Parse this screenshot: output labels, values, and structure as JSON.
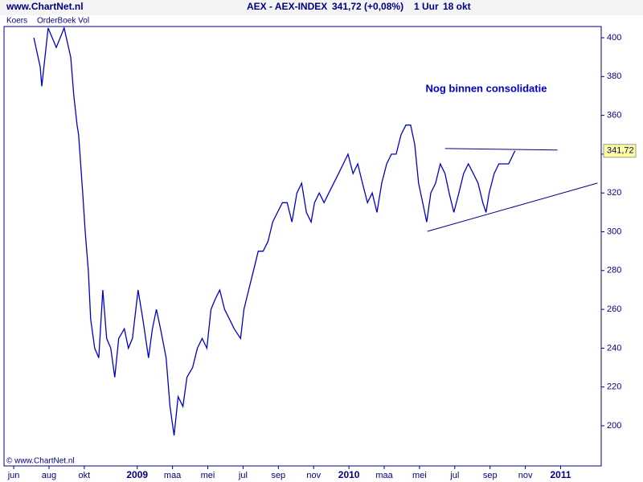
{
  "chart_data": {
    "type": "line",
    "site": "www.ChartNet.nl",
    "instrument": "AEX - AEX-INDEX",
    "quote": "341,72 (+0,08%)",
    "interval": "1 Uur",
    "date": "18 okt",
    "tabs": [
      "Koers",
      "OrderBoek Vol"
    ],
    "copyright": "© www.ChartNet.nl",
    "annotation": "Nog binnen consolidatie",
    "last_label": "341,72",
    "xlim": [
      -0.55,
      33.3
    ],
    "ylim": [
      179.3,
      405.8
    ],
    "xticks": [
      {
        "value": 0,
        "label": "jun"
      },
      {
        "value": 2,
        "label": "aug"
      },
      {
        "value": 4,
        "label": "okt"
      },
      {
        "value": 7,
        "label": "2009"
      },
      {
        "value": 9,
        "label": "maa"
      },
      {
        "value": 11,
        "label": "mei"
      },
      {
        "value": 13,
        "label": "jul"
      },
      {
        "value": 15,
        "label": "sep"
      },
      {
        "value": 17,
        "label": "nov"
      },
      {
        "value": 19,
        "label": "2010"
      },
      {
        "value": 21,
        "label": "maa"
      },
      {
        "value": 23,
        "label": "mei"
      },
      {
        "value": 25,
        "label": "jul"
      },
      {
        "value": 27,
        "label": "sep"
      },
      {
        "value": 29,
        "label": "nov"
      },
      {
        "value": 31,
        "label": "2011"
      }
    ],
    "yticks": [
      200,
      220,
      240,
      260,
      280,
      300,
      320,
      340,
      360,
      380,
      400
    ],
    "series": [
      {
        "color": "#0000cc",
        "x": [
          1.14,
          1.5,
          1.59,
          1.95,
          2.41,
          2.86,
          3.23,
          3.41,
          3.59,
          3.68,
          3.91,
          4.05,
          4.23,
          4.36,
          4.59,
          4.82,
          5.05,
          5.27,
          5.5,
          5.73,
          5.95,
          6.27,
          6.5,
          6.73,
          7.05,
          7.32,
          7.64,
          7.86,
          8.09,
          8.32,
          8.64,
          8.86,
          9.09,
          9.32,
          9.59,
          9.82,
          10.14,
          10.41,
          10.68,
          10.95,
          11.18,
          11.41,
          11.68,
          11.95,
          12.23,
          12.5,
          12.86,
          13.05,
          13.32,
          13.59,
          13.86,
          14.14,
          14.41,
          14.68,
          14.95,
          15.23,
          15.5,
          15.77,
          16.05,
          16.32,
          16.59,
          16.86,
          17.05,
          17.32,
          17.59,
          17.86,
          18.14,
          18.41,
          18.68,
          18.95,
          19.23,
          19.5,
          19.77,
          20.05,
          20.32,
          20.59,
          20.86,
          21.14,
          21.41,
          21.68,
          21.95,
          22.23,
          22.5,
          22.73,
          22.95,
          23.18,
          23.41,
          23.64,
          23.91,
          24.18,
          24.45,
          24.68,
          24.95,
          25.23,
          25.5,
          25.77,
          26.05,
          26.32,
          26.59,
          26.77,
          26.95,
          27.23,
          27.5,
          27.77,
          28.05,
          28.32,
          28.41
        ],
        "values": [
          400,
          385,
          375,
          405,
          395,
          405,
          390,
          370,
          355,
          350,
          320,
          300,
          280,
          255,
          240,
          235,
          270,
          245,
          240,
          225,
          245,
          250,
          240,
          245,
          270,
          255,
          235,
          250,
          260,
          250,
          235,
          210,
          195,
          215,
          210,
          225,
          230,
          240,
          245,
          240,
          260,
          265,
          270,
          260,
          255,
          250,
          245,
          260,
          270,
          280,
          290,
          290,
          295,
          305,
          310,
          315,
          315,
          305,
          320,
          325,
          310,
          305,
          315,
          320,
          315,
          320,
          325,
          330,
          335,
          340,
          330,
          335,
          325,
          315,
          320,
          310,
          325,
          335,
          340,
          340,
          350,
          355,
          355,
          345,
          325,
          315,
          305,
          320,
          325,
          335,
          330,
          320,
          310,
          320,
          330,
          335,
          330,
          325,
          315,
          310,
          320,
          330,
          335,
          335,
          335,
          340,
          341.72
        ]
      }
    ],
    "trendlines": [
      {
        "color": "#000080",
        "x": [
          24.45,
          30.82
        ],
        "values": [
          342.9,
          342.1
        ]
      },
      {
        "color": "#000080",
        "x": [
          23.45,
          33.09
        ],
        "values": [
          300.2,
          325.1
        ]
      }
    ]
  }
}
